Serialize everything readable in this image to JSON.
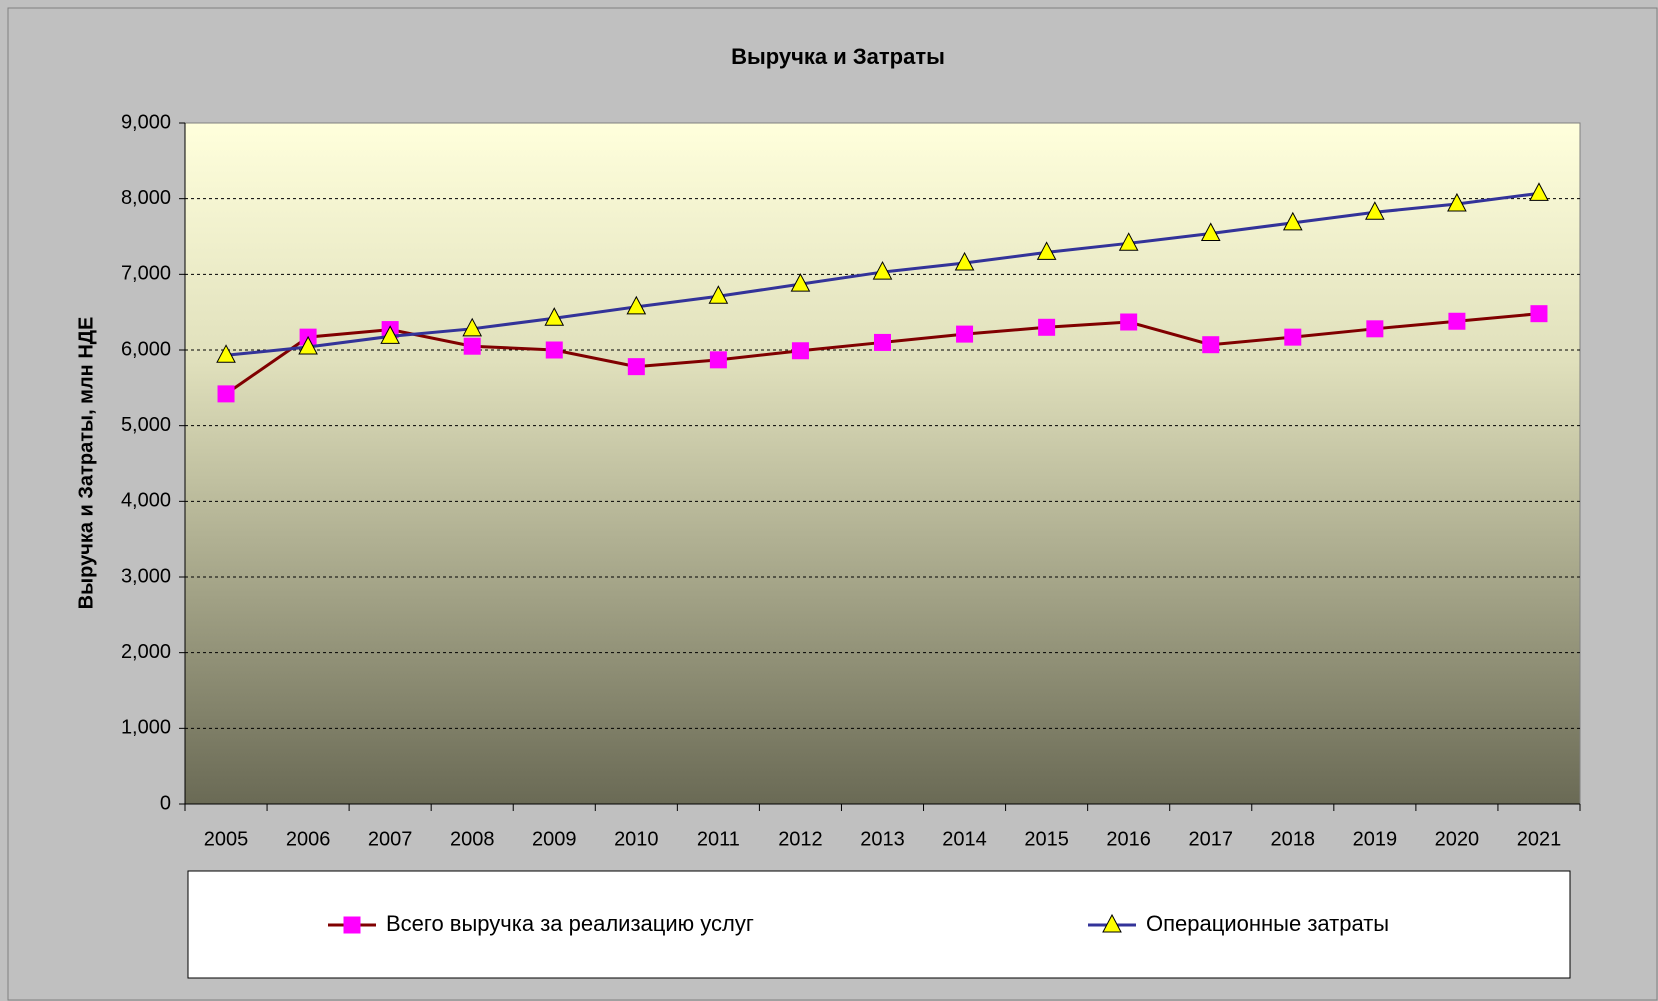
{
  "chart_data": {
    "type": "line",
    "title": "Выручка и Затраты",
    "ylabel": "Выручка и Затраты, млн НДЕ",
    "categories": [
      "2005",
      "2006",
      "2007",
      "2008",
      "2009",
      "2010",
      "2011",
      "2012",
      "2013",
      "2014",
      "2015",
      "2016",
      "2017",
      "2018",
      "2019",
      "2020",
      "2021"
    ],
    "series": [
      {
        "name": "Всего выручка за реализацию услуг",
        "color": "#800000",
        "marker": "square",
        "marker_color": "#ff00ff",
        "values": [
          5420,
          6170,
          6270,
          6050,
          6000,
          5780,
          5870,
          5990,
          6100,
          6210,
          6300,
          6370,
          6070,
          6170,
          6280,
          6380,
          6480
        ]
      },
      {
        "name": "Операционные затраты",
        "color": "#333399",
        "marker": "triangle",
        "marker_color": "#ffff00",
        "values": [
          5930,
          6040,
          6180,
          6280,
          6420,
          6570,
          6710,
          6870,
          7030,
          7150,
          7290,
          7410,
          7540,
          7680,
          7820,
          7930,
          8070
        ]
      }
    ],
    "ylim": [
      0,
      9000
    ],
    "yticks": [
      0,
      {
        "value": 1000,
        "label": "1,000"
      },
      {
        "value": 2000,
        "label": "2,000"
      },
      {
        "value": 3000,
        "label": "3,000"
      },
      {
        "value": 4000,
        "label": "4,000"
      },
      {
        "value": 5000,
        "label": "5,000"
      },
      {
        "value": 6000,
        "label": "6,000"
      },
      {
        "value": 7000,
        "label": "7,000"
      },
      {
        "value": 8000,
        "label": "8,000"
      },
      {
        "value": 9000,
        "label": "9,000"
      }
    ],
    "grid": true,
    "legend": "bottom"
  }
}
